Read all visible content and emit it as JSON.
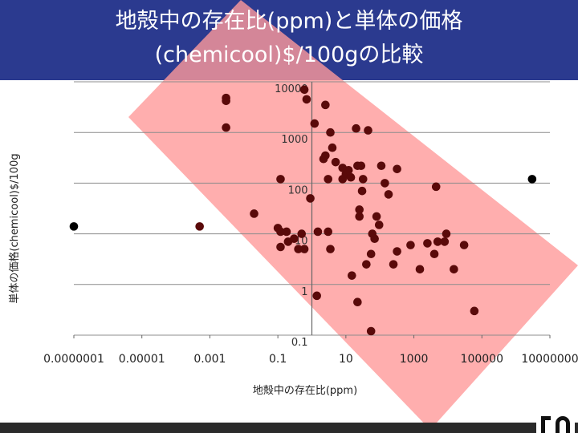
{
  "slide": {
    "title_line1": "地殻中の存在比(ppm)と単体の価格",
    "title_line2": "(chemicool)$/100gの比較"
  },
  "colors": {
    "title_bg": "#2b3a8f",
    "title_text": "#ffffff",
    "highlight_band": "#ff9a9a",
    "point": "#5a0a0a",
    "outlier_point": "#000000",
    "grid": "#8c8c8c"
  },
  "chart_data": {
    "type": "scatter",
    "title": "",
    "xlabel": "地殻中の存在比(ppm)",
    "ylabel": "単体の価格(chemicool)$/100g",
    "x_scale": "log",
    "y_scale": "log",
    "xlim": [
      1e-07,
      10000000
    ],
    "ylim": [
      0.1,
      10000
    ],
    "x_ticks": [
      1e-07,
      1e-05,
      0.001,
      0.1,
      10,
      1000,
      100000,
      10000000
    ],
    "x_tick_labels": [
      "0.0000001",
      "0.00001",
      "0.001",
      "0.1",
      "10",
      "1000",
      "100000",
      "10000000"
    ],
    "y_ticks": [
      10000,
      1000,
      100,
      10,
      1,
      0.1
    ],
    "y_tick_labels": [
      "10000",
      "1000",
      "100",
      "10",
      "1",
      "0.1"
    ],
    "grid": true,
    "highlight": "diagonal shaded band from upper-left to lower-right",
    "series": [
      {
        "points": [
          [
            0.0005,
            14
          ],
          [
            0.003,
            4800
          ],
          [
            0.003,
            4200
          ],
          [
            0.003,
            1250
          ],
          [
            0.02,
            25
          ],
          [
            0.12,
            120
          ],
          [
            0.1,
            13
          ],
          [
            0.12,
            11
          ],
          [
            0.12,
            5.5
          ],
          [
            0.18,
            11
          ],
          [
            0.2,
            7
          ],
          [
            0.3,
            8
          ],
          [
            0.4,
            5
          ],
          [
            0.5,
            10
          ],
          [
            0.6,
            5
          ],
          [
            0.7,
            4500
          ],
          [
            0.6,
            7000
          ],
          [
            0.9,
            50
          ],
          [
            1.2,
            1500
          ],
          [
            1.5,
            11
          ],
          [
            1.4,
            0.6
          ],
          [
            2.5,
            350
          ],
          [
            2.2,
            300
          ],
          [
            2.5,
            3500
          ],
          [
            3,
            120
          ],
          [
            3,
            11
          ],
          [
            3.5,
            5
          ],
          [
            3.5,
            1000
          ],
          [
            4,
            500
          ],
          [
            5,
            260
          ],
          [
            8,
            200
          ],
          [
            10,
            150
          ],
          [
            12,
            180
          ],
          [
            8,
            120
          ],
          [
            14,
            130
          ],
          [
            20,
            1200
          ],
          [
            15,
            1.5
          ],
          [
            22,
            220
          ],
          [
            28,
            220
          ],
          [
            22,
            0.45
          ],
          [
            30,
            70
          ],
          [
            32,
            120
          ],
          [
            25,
            30
          ],
          [
            25,
            22
          ],
          [
            40,
            2.5
          ],
          [
            45,
            1100
          ],
          [
            55,
            4
          ],
          [
            60,
            10
          ],
          [
            55,
            0.12
          ],
          [
            70,
            8
          ],
          [
            80,
            22
          ],
          [
            110,
            220
          ],
          [
            95,
            15
          ],
          [
            140,
            100
          ],
          [
            180,
            60
          ],
          [
            250,
            2.5
          ],
          [
            320,
            190
          ],
          [
            320,
            4.5
          ],
          [
            800,
            6
          ],
          [
            1500,
            2
          ],
          [
            2500,
            6.5
          ],
          [
            4000,
            4
          ],
          [
            4500,
            85
          ],
          [
            5000,
            7
          ],
          [
            8000,
            7
          ],
          [
            9000,
            10
          ],
          [
            15000,
            2
          ],
          [
            30000,
            6
          ],
          [
            60000,
            0.3
          ]
        ]
      },
      {
        "points": [
          [
            1e-07,
            14
          ],
          [
            3000000,
            120
          ]
        ]
      }
    ]
  }
}
